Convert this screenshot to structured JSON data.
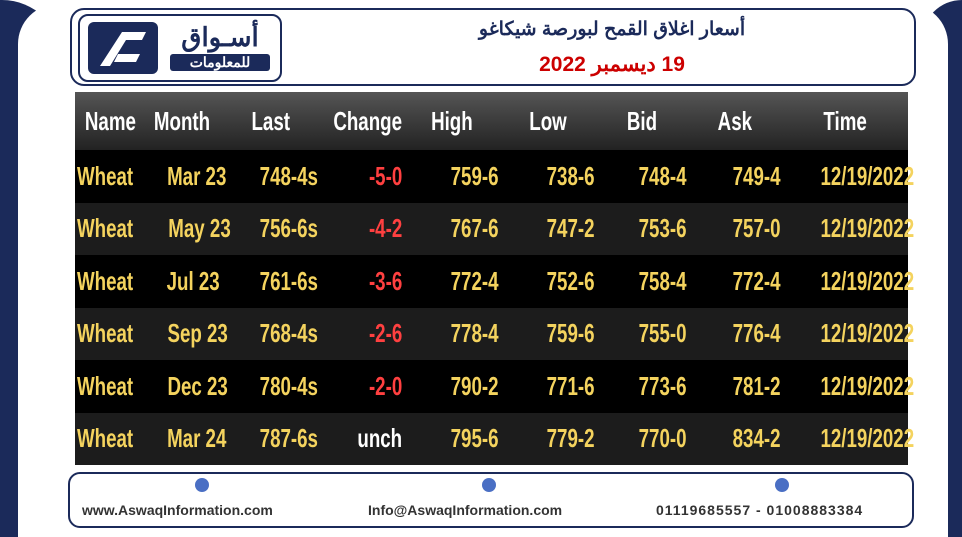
{
  "header": {
    "logo_title": "أسـواق",
    "logo_subtitle": "للمعلومات",
    "title": "أسعار اغلاق القمح لبورصة شيكاغو",
    "subtitle": "19 ديسمبر 2022"
  },
  "table": {
    "columns": [
      "Name",
      "Month",
      "Last",
      "Change",
      "High",
      "Low",
      "Bid",
      "Ask",
      "Time"
    ],
    "rows": [
      [
        "Wheat",
        "Mar 23",
        "748-4s",
        "-5-0",
        "759-6",
        "738-6",
        "748-4",
        "749-4",
        "12/19/2022"
      ],
      [
        "Wheat",
        "May 23",
        "756-6s",
        "-4-2",
        "767-6",
        "747-2",
        "753-6",
        "757-0",
        "12/19/2022"
      ],
      [
        "Wheat",
        "Jul 23",
        "761-6s",
        "-3-6",
        "772-4",
        "752-6",
        "758-4",
        "772-4",
        "12/19/2022"
      ],
      [
        "Wheat",
        "Sep 23",
        "768-4s",
        "-2-6",
        "778-4",
        "759-6",
        "755-0",
        "776-4",
        "12/19/2022"
      ],
      [
        "Wheat",
        "Dec 23",
        "780-4s",
        "-2-0",
        "790-2",
        "771-6",
        "773-6",
        "781-2",
        "12/19/2022"
      ],
      [
        "Wheat",
        "Mar 24",
        "787-6s",
        "unch",
        "795-6",
        "779-2",
        "770-0",
        "834-2",
        "12/19/2022"
      ]
    ]
  },
  "footer": {
    "website": "www.AswaqInformation.com",
    "email": "Info@AswaqInformation.com",
    "phones": "01119685557 - 01008883384"
  }
}
